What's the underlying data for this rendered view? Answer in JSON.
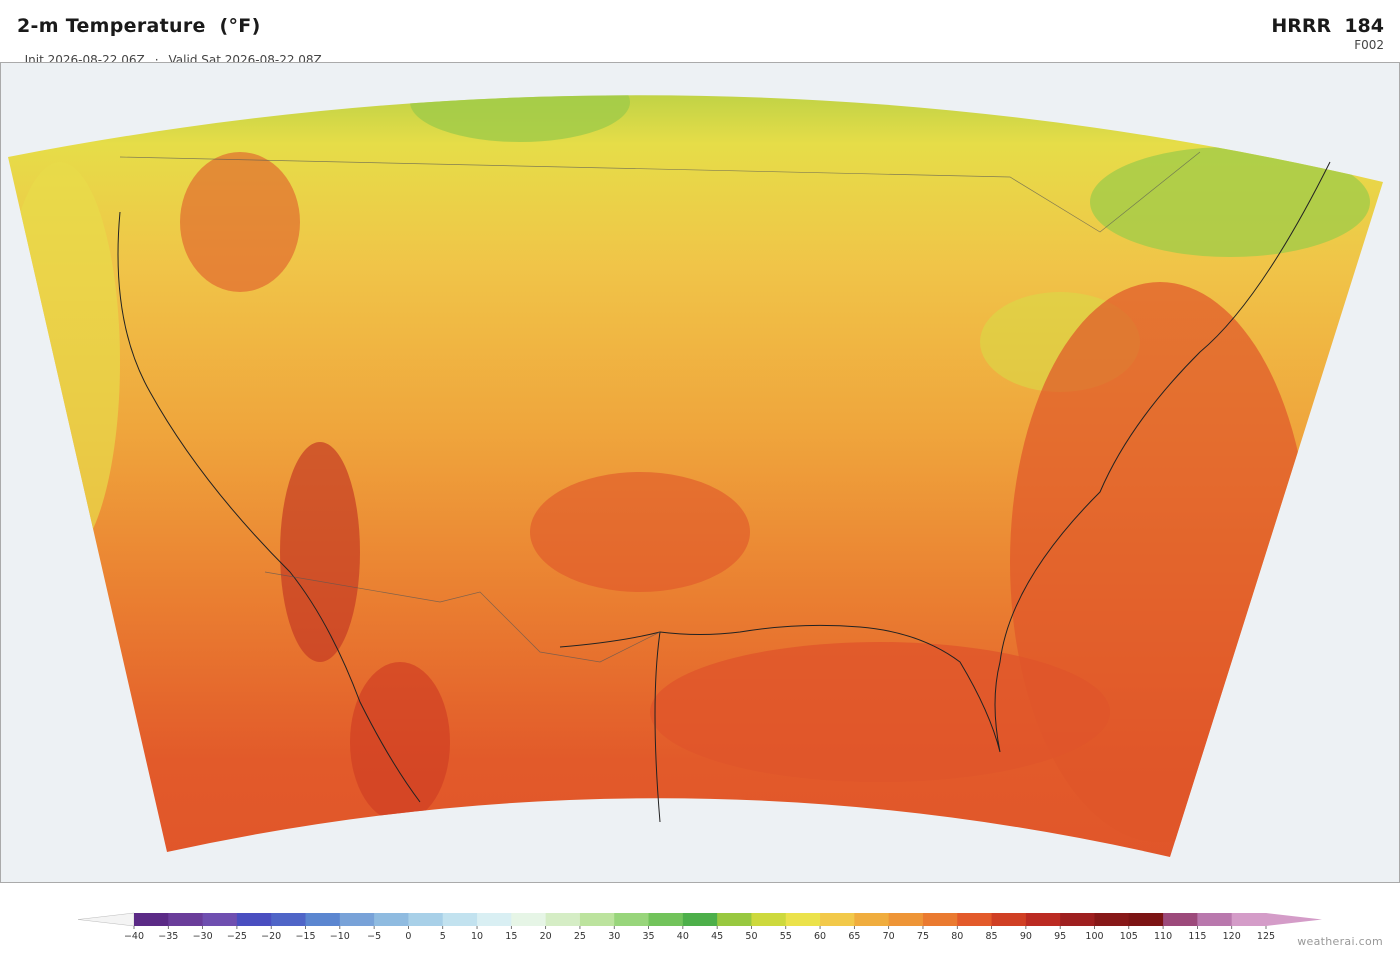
{
  "header": {
    "title": "2-m Temperature  (°F)",
    "init": "Init 2026-08-22 06Z",
    "separator": "·",
    "valid": "Valid Sat 2026-08-22 08Z",
    "model": "HRRR  184",
    "forecast_hour": "F002"
  },
  "colorbar": {
    "ticks": [
      {
        "value": -40,
        "label": "−40"
      },
      {
        "value": -35,
        "label": "−35"
      },
      {
        "value": -30,
        "label": "−30"
      },
      {
        "value": -25,
        "label": "−25"
      },
      {
        "value": -20,
        "label": "−20"
      },
      {
        "value": -15,
        "label": "−15"
      },
      {
        "value": -10,
        "label": "−10"
      },
      {
        "value": -5,
        "label": "−5"
      },
      0,
      5,
      10,
      15,
      20,
      25,
      30,
      35,
      40,
      45,
      50,
      55,
      60,
      65,
      70,
      75,
      80,
      85,
      90,
      95,
      100,
      105,
      110,
      115,
      120,
      125
    ],
    "colors": [
      "#5b2a86",
      "#6a3d9a",
      "#6f4fb0",
      "#4a4ec0",
      "#4f65c7",
      "#5b86d0",
      "#78a2d8",
      "#8fbbe0",
      "#a8d0e8",
      "#c2e2ef",
      "#d9eff3",
      "#e6f5e6",
      "#d5edc5",
      "#bce39e",
      "#98d57b",
      "#72c35b",
      "#4daf4a",
      "#98c840",
      "#cdd93d",
      "#ebe24b",
      "#f2c94a",
      "#f0ad3e",
      "#ee9537",
      "#ea7a30",
      "#e35a2a",
      "#d03f24",
      "#bb2a22",
      "#9e1f1f",
      "#871818",
      "#7c1414",
      "#9c4a7b",
      "#b978ad",
      "#d49cc8"
    ],
    "under_color": "#f4f4f4",
    "over_color": "#d49cc8"
  },
  "attribution": "weatherai.com"
}
